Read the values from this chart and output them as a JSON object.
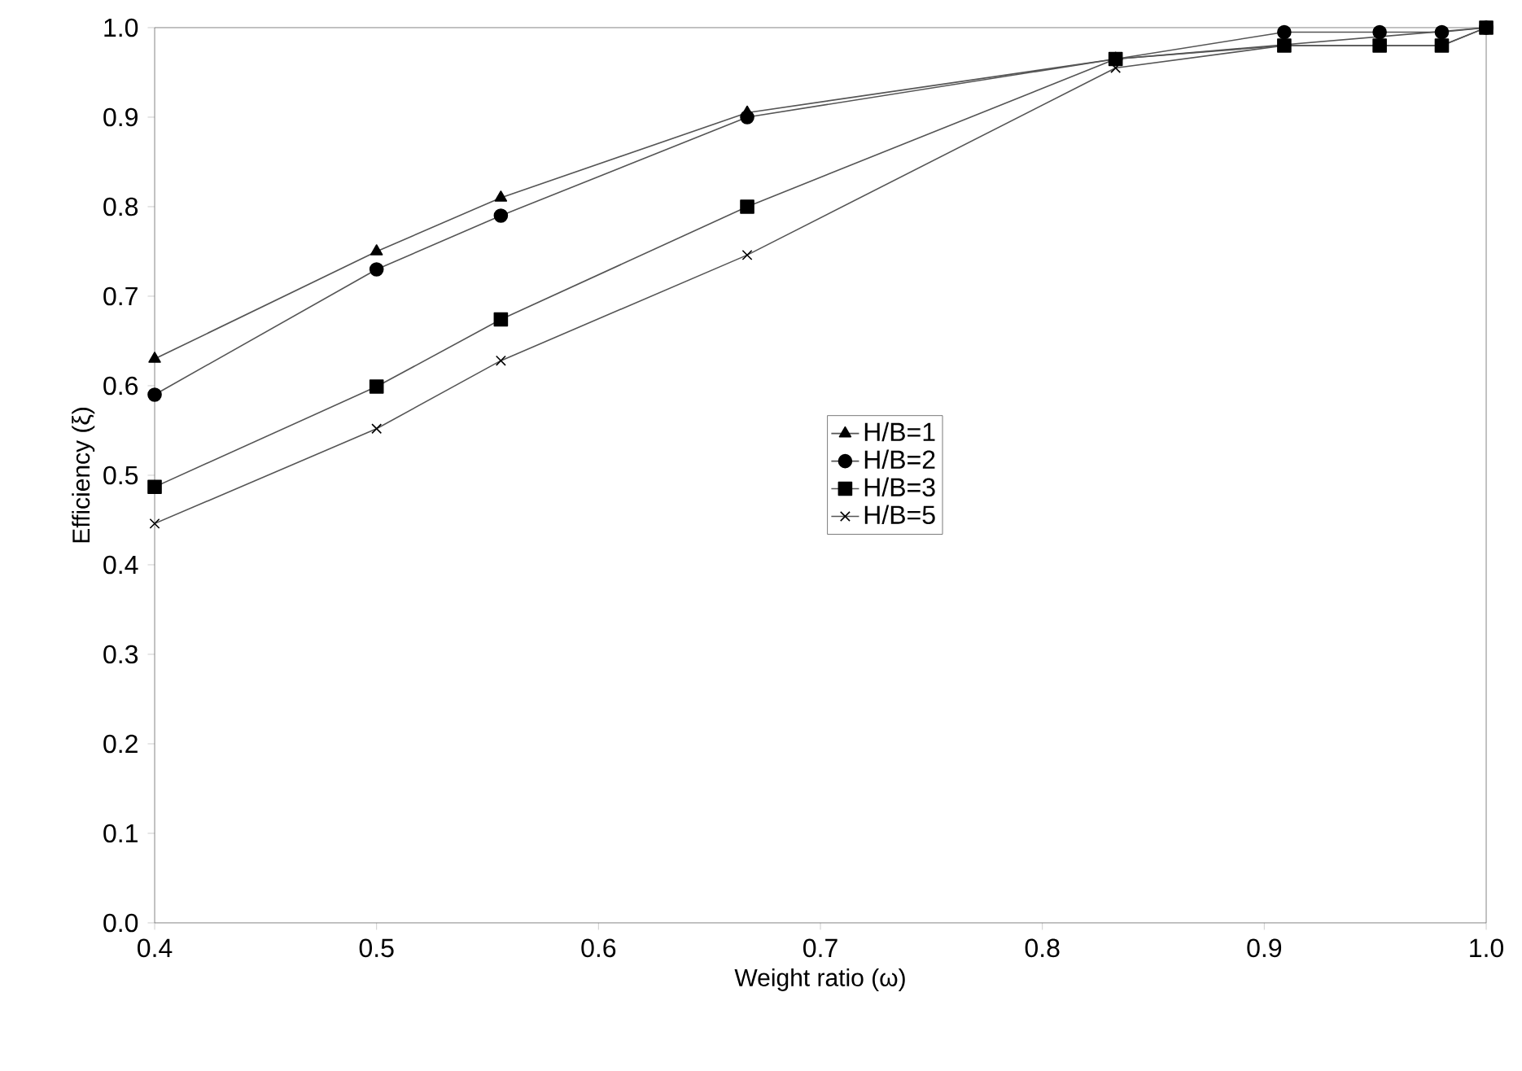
{
  "chart_data": {
    "type": "line",
    "xlabel": "Weight ratio (ω)",
    "ylabel": "Efficiency (ξ)",
    "xlim": [
      0.4,
      1.0
    ],
    "ylim": [
      0.0,
      1.0
    ],
    "xticks": [
      0.4,
      0.5,
      0.6,
      0.7,
      0.8,
      0.9,
      {
        "value": 1.0,
        "label": "1.0"
      }
    ],
    "yticks": [
      {
        "value": 0.0,
        "label": "0.0"
      },
      0.1,
      0.2,
      0.3,
      0.4,
      0.5,
      0.6,
      0.7,
      0.8,
      0.9,
      {
        "value": 1.0,
        "label": "1.0"
      }
    ],
    "x": [
      0.4,
      0.5,
      0.556,
      0.667,
      0.833,
      0.909,
      0.952,
      0.98,
      1.0
    ],
    "series": [
      {
        "name": "H/B=1",
        "color": "#555555",
        "marker": "triangle",
        "values": [
          0.63,
          0.75,
          0.81,
          0.905,
          0.965,
          null,
          null,
          null,
          1.0
        ]
      },
      {
        "name": "H/B=2",
        "color": "#555555",
        "marker": "circle",
        "values": [
          0.59,
          0.73,
          0.79,
          0.9,
          0.965,
          0.995,
          0.995,
          0.995,
          1.0
        ]
      },
      {
        "name": "H/B=3",
        "color": "#555555",
        "marker": "square",
        "values": [
          0.487,
          0.599,
          0.674,
          0.8,
          0.965,
          0.98,
          0.98,
          0.98,
          1.0
        ]
      },
      {
        "name": "H/B=5",
        "color": "#555555",
        "marker": "cross",
        "values": [
          0.446,
          0.552,
          0.628,
          0.746,
          0.955,
          0.98,
          0.98,
          0.98,
          1.0
        ]
      }
    ],
    "grid": false,
    "legend": "center",
    "line_style": "solid"
  }
}
